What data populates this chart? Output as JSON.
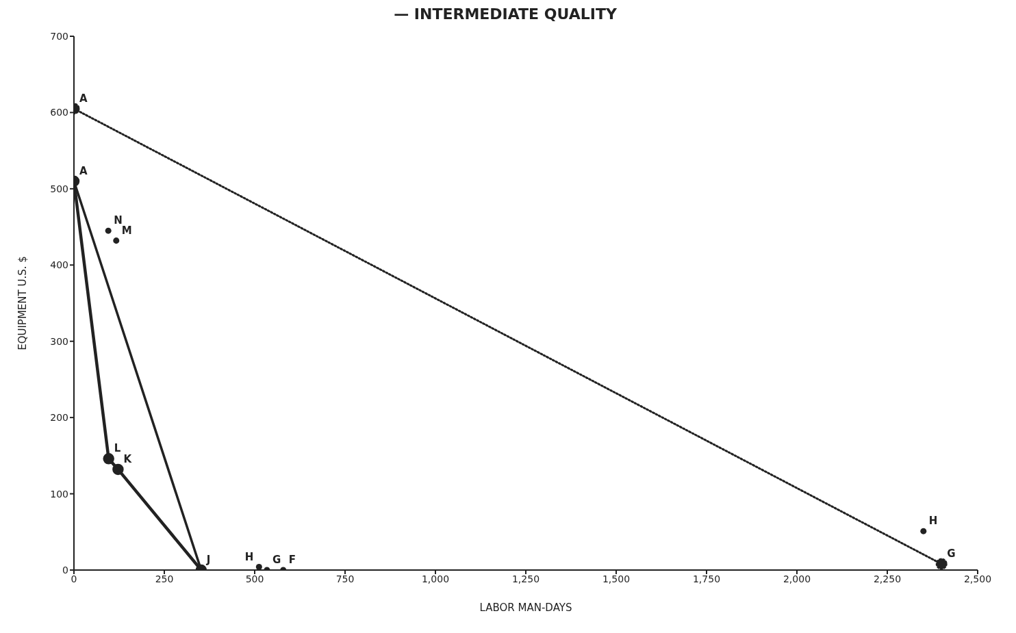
{
  "chart_data": {
    "type": "line",
    "title": "— INTERMEDIATE QUALITY",
    "xlabel": "LABOR MAN-DAYS",
    "ylabel": "EQUIPMENT U.S. $",
    "xlim": [
      0,
      2500
    ],
    "xticks": [
      0,
      250,
      500,
      750,
      {
        "value": 1000,
        "label": "1,000"
      },
      {
        "value": 1250,
        "label": "1,250"
      },
      {
        "value": 1500,
        "label": "1,500"
      },
      {
        "value": 1750,
        "label": "1,750"
      },
      {
        "value": 2000,
        "label": "2,000"
      },
      {
        "value": 2250,
        "label": "2,250"
      },
      {
        "value": 2500,
        "label": "2,500"
      }
    ],
    "ylim": [
      0,
      700
    ],
    "yticks": [
      0,
      100,
      200,
      300,
      400,
      500,
      600,
      700
    ],
    "grid": false,
    "marker": "circle",
    "series": [
      {
        "color": "#222222",
        "line_style": "dotted",
        "x": [
          0,
          2400
        ],
        "values": [
          605,
          8
        ]
      },
      {
        "color": "#222222",
        "line_style": "solid",
        "x": [
          0,
          96,
          122,
          352
        ],
        "values": [
          510,
          146,
          132,
          0
        ]
      },
      {
        "color": "#222222",
        "line_style": "solid",
        "x": [
          0,
          352
        ],
        "values": [
          510,
          0
        ]
      },
      {
        "type": "scatter",
        "color": "#222222",
        "x": [
          95,
          117,
          512,
          534,
          579,
          2350
        ],
        "values": [
          445,
          432,
          4,
          0,
          0,
          51
        ]
      }
    ],
    "annotations": [
      {
        "text": "A",
        "x": 0,
        "y": 605
      },
      {
        "text": "A",
        "x": 0,
        "y": 510
      },
      {
        "text": "N",
        "x": 95,
        "y": 445
      },
      {
        "text": "M",
        "x": 117,
        "y": 432
      },
      {
        "text": "L",
        "x": 96,
        "y": 146
      },
      {
        "text": "K",
        "x": 122,
        "y": 132
      },
      {
        "text": "J",
        "x": 352,
        "y": 0
      },
      {
        "text": "H",
        "x": 512,
        "y": 4
      },
      {
        "text": "G",
        "x": 534,
        "y": 0
      },
      {
        "text": "F",
        "x": 579,
        "y": 0
      },
      {
        "text": "H",
        "x": 2350,
        "y": 51
      },
      {
        "text": "G",
        "x": 2400,
        "y": 8
      }
    ]
  }
}
